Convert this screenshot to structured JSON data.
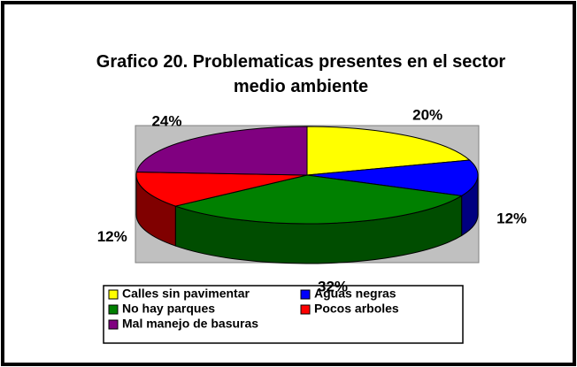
{
  "chart_data": {
    "type": "pie3d",
    "title": "Grafico 20. Problematicas presentes en el sector medio ambiente",
    "categories": [
      "Calles sin pavimentar",
      "Aguas negras",
      "No hay parques",
      "Pocos arboles",
      "Mal manejo de basuras"
    ],
    "values": [
      20,
      12,
      32,
      12,
      24
    ],
    "value_labels": [
      "20%",
      "12%",
      "32%",
      "12%",
      "24%"
    ],
    "colors": [
      "#ffff00",
      "#0000ff",
      "#008000",
      "#ff0000",
      "#800080"
    ],
    "side_colors": [
      "#808000",
      "#000080",
      "#004d00",
      "#800000",
      "#400040"
    ]
  }
}
